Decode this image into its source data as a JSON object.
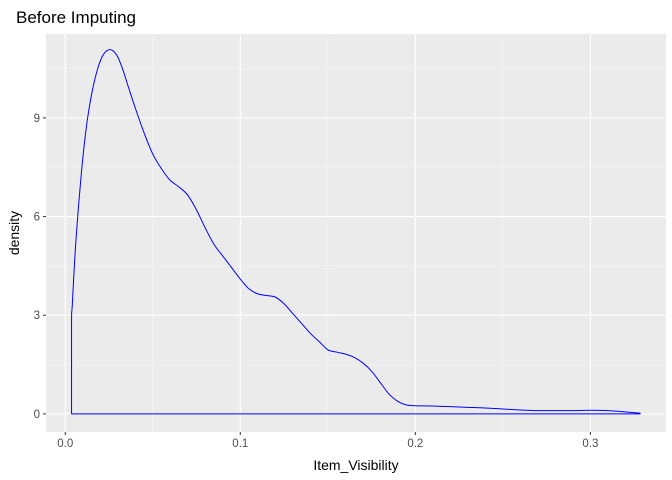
{
  "chart_data": {
    "type": "area",
    "title": "Before Imputing",
    "xlabel": "Item_Visibility",
    "ylabel": "density",
    "xlim": [
      -0.011,
      0.3432
    ],
    "ylim": [
      -0.55,
      11.55
    ],
    "x_ticks": [
      {
        "value": 0.0,
        "label": "0.0"
      },
      {
        "value": 0.1,
        "label": "0.1"
      },
      {
        "value": 0.2,
        "label": "0.2"
      },
      {
        "value": 0.3,
        "label": "0.3"
      }
    ],
    "y_ticks": [
      {
        "value": 0,
        "label": "0"
      },
      {
        "value": 3,
        "label": "3"
      },
      {
        "value": 6,
        "label": "6"
      },
      {
        "value": 9,
        "label": "9"
      }
    ],
    "grid": true,
    "legend": "none",
    "colors": {
      "panel_background": "#EBEBEB",
      "grid_major": "#FFFFFF",
      "grid_minor": "#F4F4F4",
      "series_line": "#0000FF",
      "fill": "none"
    },
    "series": [
      {
        "x": [
          0.0036,
          0.0036,
          0.004,
          0.006,
          0.009,
          0.012,
          0.015,
          0.018,
          0.021,
          0.024,
          0.027,
          0.03,
          0.033,
          0.036,
          0.04,
          0.045,
          0.05,
          0.055,
          0.06,
          0.065,
          0.07,
          0.075,
          0.08,
          0.085,
          0.09,
          0.095,
          0.1,
          0.105,
          0.11,
          0.115,
          0.12,
          0.125,
          0.13,
          0.135,
          0.14,
          0.145,
          0.15,
          0.155,
          0.16,
          0.165,
          0.17,
          0.175,
          0.18,
          0.185,
          0.19,
          0.195,
          0.2,
          0.21,
          0.22,
          0.23,
          0.24,
          0.25,
          0.26,
          0.27,
          0.28,
          0.29,
          0.3,
          0.31,
          0.32,
          0.3284,
          0.3284
        ],
        "y": [
          0,
          2.8,
          3.3,
          5.2,
          7.2,
          8.7,
          9.7,
          10.4,
          10.85,
          11.05,
          11.05,
          10.85,
          10.45,
          9.95,
          9.3,
          8.55,
          7.9,
          7.45,
          7.1,
          6.9,
          6.65,
          6.2,
          5.65,
          5.15,
          4.8,
          4.45,
          4.1,
          3.8,
          3.65,
          3.6,
          3.55,
          3.35,
          3.05,
          2.75,
          2.45,
          2.2,
          1.95,
          1.88,
          1.82,
          1.72,
          1.55,
          1.3,
          0.95,
          0.6,
          0.38,
          0.27,
          0.25,
          0.24,
          0.22,
          0.2,
          0.18,
          0.15,
          0.12,
          0.1,
          0.1,
          0.1,
          0.11,
          0.1,
          0.06,
          0.02,
          0
        ]
      }
    ]
  }
}
